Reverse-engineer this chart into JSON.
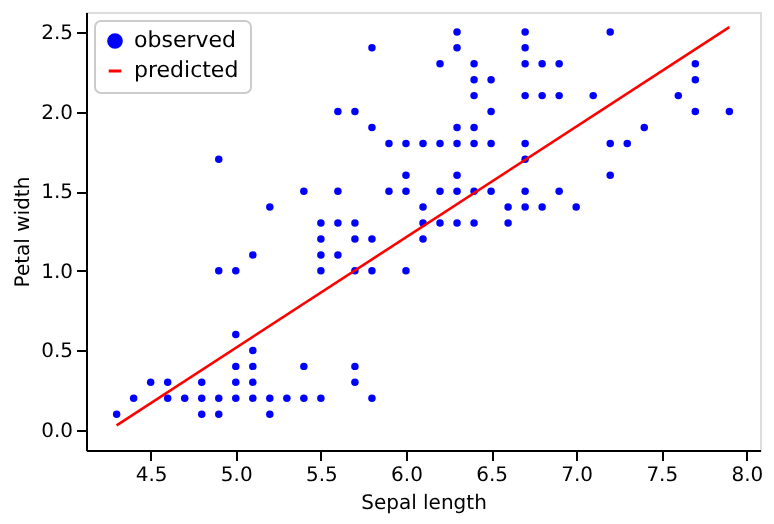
{
  "chart_data": {
    "type": "scatter",
    "xlabel": "Sepal length",
    "ylabel": "Petal width",
    "xlim": [
      4.12,
      8.08
    ],
    "ylim": [
      -0.125,
      2.625
    ],
    "xticks": [
      4.5,
      {
        "value": 5,
        "label": "5.0"
      },
      5.5,
      {
        "value": 6,
        "label": "6.0"
      },
      6.5,
      {
        "value": 7,
        "label": "7.0"
      },
      7.5,
      {
        "value": 8,
        "label": "8.0"
      }
    ],
    "yticks": [
      {
        "value": 0,
        "label": "0.0"
      },
      0.5,
      {
        "value": 1,
        "label": "1.0"
      },
      1.5,
      {
        "value": 2,
        "label": "2.0"
      },
      2.5
    ],
    "grid": false,
    "legend": "top left",
    "series": [
      {
        "name": "observed",
        "marker": "circle",
        "color": "#0000ff",
        "x": [
          4.3,
          4.4,
          4.5,
          4.6,
          4.6,
          4.7,
          4.8,
          4.8,
          4.8,
          4.9,
          4.9,
          4.9,
          4.9,
          5.0,
          5.0,
          5.0,
          5.0,
          5.0,
          5.1,
          5.1,
          5.1,
          5.1,
          5.1,
          5.2,
          5.2,
          5.2,
          5.3,
          5.4,
          5.4,
          5.4,
          5.5,
          5.5,
          5.5,
          5.5,
          5.5,
          5.6,
          5.6,
          5.6,
          5.6,
          5.7,
          5.7,
          5.7,
          5.7,
          5.7,
          5.7,
          5.8,
          5.8,
          5.8,
          5.8,
          5.8,
          5.9,
          5.9,
          6.0,
          6.0,
          6.0,
          6.0,
          6.1,
          6.1,
          6.1,
          6.1,
          6.2,
          6.2,
          6.2,
          6.2,
          6.3,
          6.3,
          6.3,
          6.3,
          6.3,
          6.3,
          6.3,
          6.4,
          6.4,
          6.4,
          6.4,
          6.4,
          6.4,
          6.4,
          6.5,
          6.5,
          6.5,
          6.5,
          6.6,
          6.6,
          6.7,
          6.7,
          6.7,
          6.7,
          6.7,
          6.7,
          6.7,
          6.7,
          6.8,
          6.8,
          6.8,
          6.9,
          6.9,
          6.9,
          7.0,
          7.1,
          7.2,
          7.2,
          7.2,
          7.3,
          7.4,
          7.6,
          7.7,
          7.7,
          7.7,
          7.9
        ],
        "values": [
          0.1,
          0.2,
          0.3,
          0.2,
          0.3,
          0.2,
          0.1,
          0.2,
          0.3,
          0.1,
          0.2,
          1.0,
          1.7,
          0.2,
          0.3,
          0.4,
          0.6,
          1.0,
          0.2,
          0.3,
          0.4,
          0.5,
          1.1,
          0.1,
          0.2,
          1.4,
          0.2,
          0.2,
          0.4,
          1.5,
          0.2,
          1.0,
          1.1,
          1.2,
          1.3,
          1.1,
          1.3,
          1.5,
          2.0,
          0.3,
          0.4,
          1.0,
          1.2,
          1.3,
          2.0,
          0.2,
          1.0,
          1.2,
          1.9,
          2.4,
          1.5,
          1.8,
          1.0,
          1.5,
          1.6,
          1.8,
          1.2,
          1.3,
          1.4,
          1.8,
          1.3,
          1.5,
          1.8,
          2.3,
          1.3,
          1.5,
          1.6,
          1.8,
          1.9,
          2.4,
          2.5,
          1.3,
          1.5,
          1.8,
          1.9,
          2.1,
          2.2,
          2.3,
          1.5,
          1.8,
          2.0,
          2.2,
          1.3,
          1.4,
          1.4,
          1.5,
          1.7,
          1.8,
          2.1,
          2.3,
          2.4,
          2.5,
          1.4,
          2.1,
          2.3,
          1.5,
          2.1,
          2.3,
          1.4,
          2.1,
          1.6,
          1.8,
          2.5,
          1.8,
          1.9,
          2.1,
          2.0,
          2.2,
          2.3,
          2.0
        ]
      },
      {
        "name": "predicted",
        "type": "line",
        "marker": "none",
        "color": "#ff0000",
        "x": [
          4.3,
          7.9
        ],
        "values": [
          0.03,
          2.53
        ]
      }
    ]
  }
}
